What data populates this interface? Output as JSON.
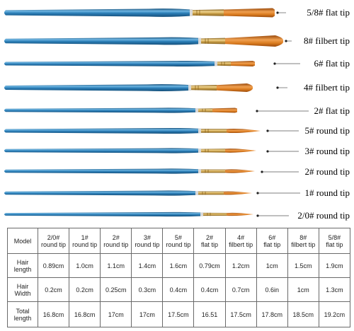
{
  "brushes": [
    {
      "label": "5/8# flat tip",
      "tip": "flat"
    },
    {
      "label": "8# filbert tip",
      "tip": "filbert"
    },
    {
      "label": "6# flat tip",
      "tip": "flat"
    },
    {
      "label": "4# filbert tip",
      "tip": "filbert"
    },
    {
      "label": "2# flat tip",
      "tip": "flat"
    },
    {
      "label": "5# round tip",
      "tip": "round"
    },
    {
      "label": "3# round tip",
      "tip": "round"
    },
    {
      "label": "2# round tip",
      "tip": "round"
    },
    {
      "label": "1# round tip",
      "tip": "round"
    },
    {
      "label": "2/0# round tip",
      "tip": "round"
    }
  ],
  "colors": {
    "handle": "#2c7fb8",
    "handle_dark": "#154f7a",
    "handle_light": "#6fb6e2",
    "ferrule": "#c9a04a",
    "ferrule_dark": "#8a6420",
    "hair": "#d97a1e",
    "hair_dark": "#9a4a0c"
  },
  "table": {
    "header_label": "Model",
    "columns": [
      {
        "line1": "2/0#",
        "line2": "round tip"
      },
      {
        "line1": "1#",
        "line2": "round tip"
      },
      {
        "line1": "2#",
        "line2": "round tip"
      },
      {
        "line1": "3#",
        "line2": "round tip"
      },
      {
        "line1": "5#",
        "line2": "round tip"
      },
      {
        "line1": "2#",
        "line2": "flat tip"
      },
      {
        "line1": "4#",
        "line2": "filbert tip"
      },
      {
        "line1": "6#",
        "line2": "flat tip"
      },
      {
        "line1": "8#",
        "line2": "filbert tip"
      },
      {
        "line1": "5/8#",
        "line2": "flat tip"
      }
    ],
    "rows": [
      {
        "line1": "Hair",
        "line2": "length",
        "values": [
          "0.89cm",
          "1.0cm",
          "1.1cm",
          "1.4cm",
          "1.6cm",
          "0.79cm",
          "1.2cm",
          "1cm",
          "1.5cm",
          "1.9cm"
        ]
      },
      {
        "line1": "Hair",
        "line2": "Width",
        "values": [
          "0.2cm",
          "0.2cm",
          "0.25cm",
          "0.3cm",
          "0.4cm",
          "0.4cm",
          "0.7cm",
          "0.6in",
          "1cm",
          "1.3cm"
        ]
      },
      {
        "line1": "Total",
        "line2": "length",
        "values": [
          "16.8cm",
          "16.8cm",
          "17cm",
          "17cm",
          "17.5cm",
          "16.51",
          "17.5cm",
          "17.8cm",
          "18.5cm",
          "19.2cm"
        ]
      }
    ]
  }
}
